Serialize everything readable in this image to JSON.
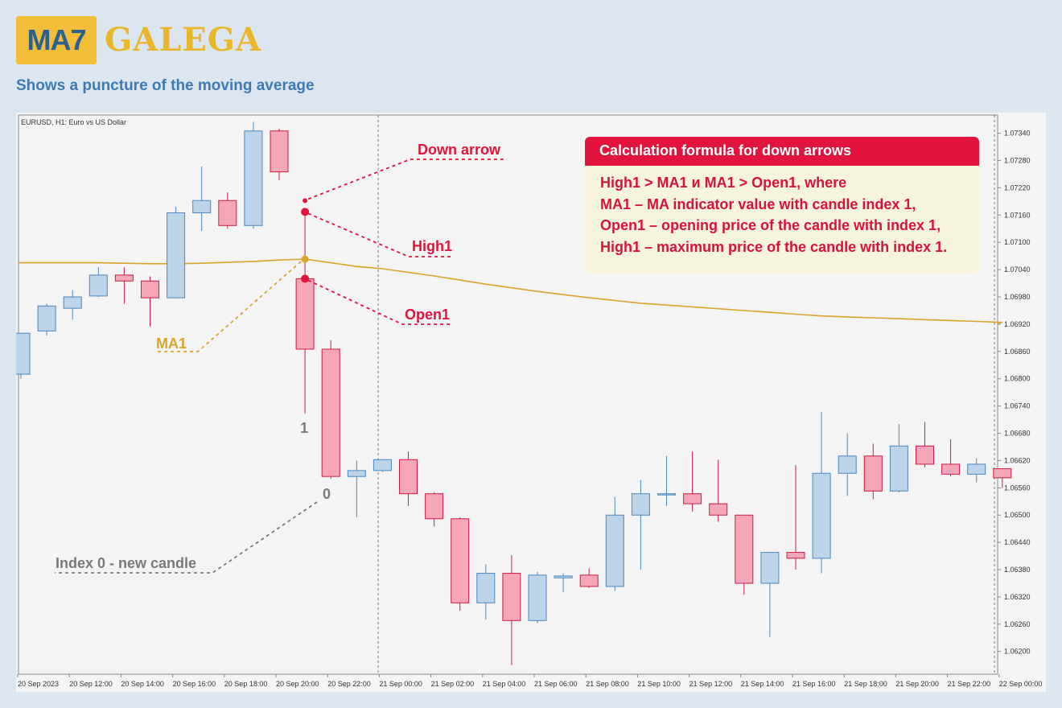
{
  "logo": {
    "badge": "MA7",
    "word": "GALEGA"
  },
  "subtitle": "Shows a puncture of the moving average",
  "formula": {
    "title": "Calculation formula for down arrows",
    "lines": [
      "High1 > MA1 и MA1 > Open1, where",
      "MA1 – MA indicator value with candle index 1,",
      "Open1 – opening price of the candle with index 1,",
      "High1 – maximum price of the candle with index 1."
    ]
  },
  "colors": {
    "bull": "#bcd4ea",
    "bull_edge": "#4a86c0",
    "bear": "#f6a6b9",
    "bear_edge": "#cf1b45",
    "ma": "#d9a42a",
    "accent": "#e0143c",
    "index_text": "#7a7a7a"
  },
  "chart_data": {
    "type": "candlestick",
    "symbol_label": "EURUSD, H1:  Euro vs US Dollar",
    "ylim": [
      1.0615,
      1.0738
    ],
    "y_ticks": [
      "1.07340",
      "1.07280",
      "1.07220",
      "1.07160",
      "1.07100",
      "1.07040",
      "1.06980",
      "1.06920",
      "1.06860",
      "1.06800",
      "1.06740",
      "1.06680",
      "1.06620",
      "1.06560",
      "1.06500",
      "1.06440",
      "1.06380",
      "1.06320",
      "1.06260",
      "1.06200"
    ],
    "x_ticks": [
      "20 Sep 2023",
      "20 Sep 12:00",
      "20 Sep 14:00",
      "20 Sep 16:00",
      "20 Sep 18:00",
      "20 Sep 20:00",
      "20 Sep 22:00",
      "21 Sep 00:00",
      "21 Sep 02:00",
      "21 Sep 04:00",
      "21 Sep 06:00",
      "21 Sep 08:00",
      "21 Sep 10:00",
      "21 Sep 12:00",
      "21 Sep 14:00",
      "21 Sep 16:00",
      "21 Sep 18:00",
      "21 Sep 20:00",
      "21 Sep 22:00",
      "22 Sep 00:00"
    ],
    "candles": [
      {
        "o": 1.0681,
        "h": 1.069,
        "l": 1.068,
        "c": 1.069
      },
      {
        "o": 1.06905,
        "h": 1.06965,
        "l": 1.06895,
        "c": 1.0696
      },
      {
        "o": 1.06955,
        "h": 1.06995,
        "l": 1.0693,
        "c": 1.0698
      },
      {
        "o": 1.06982,
        "h": 1.07045,
        "l": 1.0698,
        "c": 1.07028
      },
      {
        "o": 1.07028,
        "h": 1.07045,
        "l": 1.06965,
        "c": 1.07015
      },
      {
        "o": 1.07015,
        "h": 1.07025,
        "l": 1.06915,
        "c": 1.06978
      },
      {
        "o": 1.06978,
        "h": 1.07178,
        "l": 1.06978,
        "c": 1.07165
      },
      {
        "o": 1.07165,
        "h": 1.07267,
        "l": 1.07125,
        "c": 1.07192
      },
      {
        "o": 1.07192,
        "h": 1.0721,
        "l": 1.0713,
        "c": 1.07137
      },
      {
        "o": 1.07137,
        "h": 1.07365,
        "l": 1.0713,
        "c": 1.07345
      },
      {
        "o": 1.07345,
        "h": 1.0735,
        "l": 1.07237,
        "c": 1.07255
      },
      {
        "o": 1.0702,
        "h": 1.07167,
        "l": 1.06723,
        "c": 1.06865
      },
      {
        "o": 1.06865,
        "h": 1.06885,
        "l": 1.0658,
        "c": 1.06585
      },
      {
        "o": 1.06585,
        "h": 1.0662,
        "l": 1.06495,
        "c": 1.06598
      },
      {
        "o": 1.06598,
        "h": 1.06622,
        "l": 1.06595,
        "c": 1.06622
      },
      {
        "o": 1.06622,
        "h": 1.0664,
        "l": 1.0652,
        "c": 1.06547
      },
      {
        "o": 1.06547,
        "h": 1.0655,
        "l": 1.06475,
        "c": 1.06492
      },
      {
        "o": 1.06492,
        "h": 1.06495,
        "l": 1.0629,
        "c": 1.06307
      },
      {
        "o": 1.06307,
        "h": 1.06392,
        "l": 1.0627,
        "c": 1.06372
      },
      {
        "o": 1.06372,
        "h": 1.06412,
        "l": 1.0617,
        "c": 1.06268
      },
      {
        "o": 1.06268,
        "h": 1.06375,
        "l": 1.06262,
        "c": 1.06368
      },
      {
        "o": 1.06362,
        "h": 1.06372,
        "l": 1.0633,
        "c": 1.06366
      },
      {
        "o": 1.06368,
        "h": 1.06383,
        "l": 1.0634,
        "c": 1.06343
      },
      {
        "o": 1.06343,
        "h": 1.0654,
        "l": 1.06333,
        "c": 1.065
      },
      {
        "o": 1.065,
        "h": 1.06577,
        "l": 1.0638,
        "c": 1.06547
      },
      {
        "o": 1.06545,
        "h": 1.0663,
        "l": 1.0652,
        "c": 1.06547
      },
      {
        "o": 1.06547,
        "h": 1.0664,
        "l": 1.06508,
        "c": 1.06525
      },
      {
        "o": 1.06525,
        "h": 1.06622,
        "l": 1.06485,
        "c": 1.065
      },
      {
        "o": 1.065,
        "h": 1.065,
        "l": 1.06325,
        "c": 1.0635
      },
      {
        "o": 1.0635,
        "h": 1.06418,
        "l": 1.06232,
        "c": 1.06418
      },
      {
        "o": 1.06418,
        "h": 1.0661,
        "l": 1.0638,
        "c": 1.06405
      },
      {
        "o": 1.06405,
        "h": 1.06727,
        "l": 1.06372,
        "c": 1.06592
      },
      {
        "o": 1.06592,
        "h": 1.0668,
        "l": 1.06542,
        "c": 1.0663
      },
      {
        "o": 1.0663,
        "h": 1.06657,
        "l": 1.06535,
        "c": 1.06553
      },
      {
        "o": 1.06553,
        "h": 1.067,
        "l": 1.0655,
        "c": 1.06652
      },
      {
        "o": 1.06652,
        "h": 1.06705,
        "l": 1.06605,
        "c": 1.06612
      },
      {
        "o": 1.06612,
        "h": 1.06667,
        "l": 1.06585,
        "c": 1.0659
      },
      {
        "o": 1.0659,
        "h": 1.06625,
        "l": 1.06572,
        "c": 1.06612
      },
      {
        "o": 1.06602,
        "h": 1.06602,
        "l": 1.0656,
        "c": 1.06582
      }
    ],
    "ma1": [
      1.07055,
      1.07055,
      1.07055,
      1.07055,
      1.07054,
      1.07053,
      1.07053,
      1.07054,
      1.07056,
      1.07058,
      1.07061,
      1.07063,
      1.07055,
      1.07047,
      1.07042,
      1.07034,
      1.07026,
      1.07017,
      1.07008,
      1.07,
      1.06992,
      1.06985,
      1.06978,
      1.06972,
      1.06966,
      1.06962,
      1.06958,
      1.06954,
      1.0695,
      1.06946,
      1.06942,
      1.06938,
      1.06936,
      1.06934,
      1.06932,
      1.0693,
      1.06928,
      1.06926,
      1.06924
    ],
    "annotations": {
      "down_arrow": "Down arrow",
      "high1": "High1",
      "open1": "Open1",
      "ma1": "MA1",
      "index1": "1",
      "index0": "0",
      "new_candle": "Index 0 - new candle"
    }
  }
}
